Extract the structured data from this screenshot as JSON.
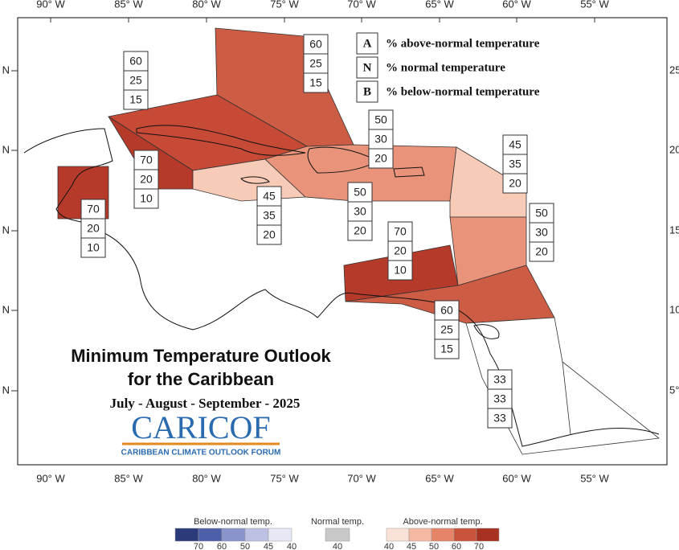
{
  "map": {
    "title": "Minimum Temperature Outlook",
    "title_line2": "for the Caribbean",
    "period": "July - August - September - 2025",
    "logo": "CARICOF",
    "logo_subtitle": "CARIBBEAN CLIMATE OUTLOOK FORUM",
    "lon_labels": [
      "90° W",
      "85° W",
      "80° W",
      "75° W",
      "70° W",
      "65° W",
      "60° W",
      "55° W"
    ],
    "lat_labels_left": [
      "N",
      "N",
      "N",
      "N",
      "N"
    ],
    "lat_labels_right": [
      "25°",
      "20°",
      "15°",
      "10°",
      "5°"
    ],
    "key": [
      {
        "letter": "A",
        "text": "% above-normal temperature"
      },
      {
        "letter": "N",
        "text": "% normal temperature"
      },
      {
        "letter": "B",
        "text": "% below-normal temperature"
      }
    ],
    "regions": [
      {
        "values": [
          60,
          25,
          15
        ]
      },
      {
        "values": [
          60,
          25,
          15
        ]
      },
      {
        "values": [
          50,
          30,
          20
        ]
      },
      {
        "values": [
          70,
          20,
          10
        ]
      },
      {
        "values": [
          70,
          20,
          10
        ]
      },
      {
        "values": [
          45,
          35,
          20
        ]
      },
      {
        "values": [
          50,
          30,
          20
        ]
      },
      {
        "values": [
          45,
          35,
          20
        ]
      },
      {
        "values": [
          50,
          30,
          20
        ]
      },
      {
        "values": [
          70,
          20,
          10
        ]
      },
      {
        "values": [
          60,
          25,
          15
        ]
      },
      {
        "values": [
          33,
          33,
          33
        ]
      }
    ],
    "colorbar": {
      "below_label": "Below-normal temp.",
      "normal_label": "Normal temp.",
      "above_label": "Above-normal temp.",
      "below_ticks": [
        70,
        60,
        50,
        45,
        40
      ],
      "normal_ticks": [
        40
      ],
      "above_ticks": [
        40,
        45,
        50,
        60,
        70
      ]
    }
  }
}
